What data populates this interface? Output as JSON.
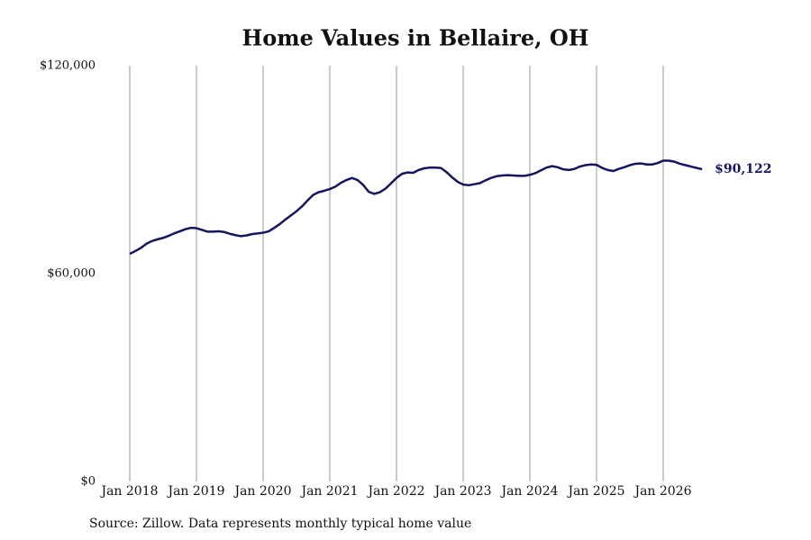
{
  "chart_data": {
    "type": "line",
    "title": "Home Values in Bellaire, OH",
    "source": "Source: Zillow. Data represents monthly typical home value",
    "x": [
      "2018-01",
      "2018-02",
      "2018-03",
      "2018-04",
      "2018-05",
      "2018-06",
      "2018-07",
      "2018-08",
      "2018-09",
      "2018-10",
      "2018-11",
      "2018-12",
      "2019-01",
      "2019-02",
      "2019-03",
      "2019-04",
      "2019-05",
      "2019-06",
      "2019-07",
      "2019-08",
      "2019-09",
      "2019-10",
      "2019-11",
      "2019-12",
      "2020-01",
      "2020-02",
      "2020-03",
      "2020-04",
      "2020-05",
      "2020-06",
      "2020-07",
      "2020-08",
      "2020-09",
      "2020-10",
      "2020-11",
      "2020-12",
      "2021-01",
      "2021-02",
      "2021-03",
      "2021-04",
      "2021-05",
      "2021-06",
      "2021-07",
      "2021-08",
      "2021-09",
      "2021-10",
      "2021-11",
      "2021-12",
      "2022-01",
      "2022-02",
      "2022-03",
      "2022-04",
      "2022-05",
      "2022-06",
      "2022-07",
      "2022-08",
      "2022-09",
      "2022-10",
      "2022-11",
      "2022-12",
      "2023-01",
      "2023-02",
      "2023-03",
      "2023-04",
      "2023-05",
      "2023-06",
      "2023-07",
      "2023-08",
      "2023-09",
      "2023-10",
      "2023-11",
      "2023-12",
      "2024-01",
      "2024-02",
      "2024-03",
      "2024-04",
      "2024-05",
      "2024-06",
      "2024-07",
      "2024-08",
      "2024-09",
      "2024-10",
      "2024-11",
      "2024-12",
      "2025-01",
      "2025-02",
      "2025-03",
      "2025-04",
      "2025-05",
      "2025-06",
      "2025-07",
      "2025-08",
      "2025-09",
      "2025-10",
      "2025-11",
      "2025-12",
      "2026-01",
      "2026-02",
      "2026-03",
      "2026-04",
      "2026-05",
      "2026-06",
      "2026-07",
      "2026-08"
    ],
    "series": [
      {
        "name": "Home value",
        "color": "#15155e",
        "values": [
          65700,
          66500,
          67400,
          68600,
          69400,
          69900,
          70300,
          70900,
          71600,
          72200,
          72800,
          73200,
          73100,
          72600,
          72100,
          72100,
          72200,
          72000,
          71500,
          71100,
          70800,
          71000,
          71400,
          71600,
          71800,
          72200,
          73200,
          74300,
          75600,
          76800,
          78000,
          79400,
          81100,
          82700,
          83500,
          83900,
          84400,
          85100,
          86200,
          87000,
          87600,
          87000,
          85600,
          83600,
          83000,
          83500,
          84500,
          86000,
          87600,
          88800,
          89200,
          89100,
          89900,
          90400,
          90600,
          90600,
          90500,
          89300,
          87800,
          86500,
          85700,
          85500,
          85800,
          86100,
          86900,
          87600,
          88100,
          88300,
          88400,
          88300,
          88200,
          88200,
          88500,
          89000,
          89800,
          90600,
          91000,
          90700,
          90100,
          89900,
          90200,
          90900,
          91300,
          91500,
          91400,
          90500,
          89900,
          89600,
          90200,
          90700,
          91300,
          91700,
          91800,
          91500,
          91500,
          91900,
          92600,
          92600,
          92300,
          91700,
          91300,
          90900,
          90500,
          90122
        ]
      }
    ],
    "annotations": [
      {
        "text": "$90,122",
        "x": "2026-08",
        "y": 90122
      }
    ],
    "xlim": [
      "2018-01",
      "2026-08"
    ],
    "xticks": [
      {
        "value": "2018-01",
        "label": "Jan 2018"
      },
      {
        "value": "2019-01",
        "label": "Jan 2019"
      },
      {
        "value": "2020-01",
        "label": "Jan 2020"
      },
      {
        "value": "2021-01",
        "label": "Jan 2021"
      },
      {
        "value": "2022-01",
        "label": "Jan 2022"
      },
      {
        "value": "2023-01",
        "label": "Jan 2023"
      },
      {
        "value": "2024-01",
        "label": "Jan 2024"
      },
      {
        "value": "2025-01",
        "label": "Jan 2025"
      },
      {
        "value": "2026-01",
        "label": "Jan 2026"
      }
    ],
    "ylim": [
      0,
      120000
    ],
    "yticks": [
      {
        "value": 0,
        "label": "$0"
      },
      {
        "value": 60000,
        "label": "$60,000"
      },
      {
        "value": 120000,
        "label": "$120,000"
      }
    ],
    "grid": "x"
  }
}
